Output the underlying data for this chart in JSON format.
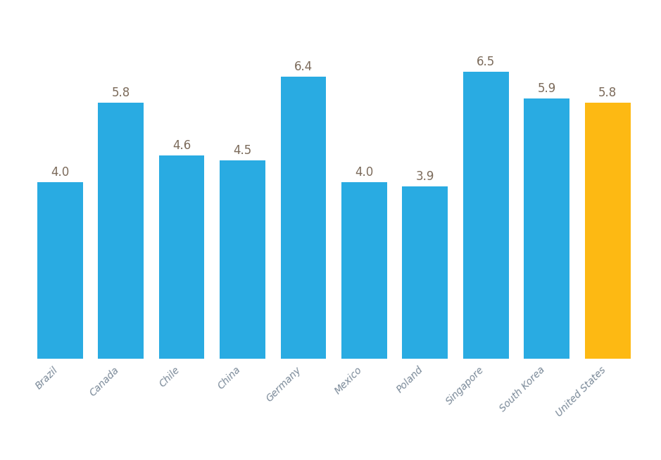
{
  "categories": [
    "Brazil",
    "Canada",
    "Chile",
    "China",
    "Germany",
    "Mexico",
    "Poland",
    "Singapore",
    "South Korea",
    "United States"
  ],
  "values": [
    4.0,
    5.8,
    4.6,
    4.5,
    6.4,
    4.0,
    3.9,
    6.5,
    5.9,
    5.8
  ],
  "bar_colors": [
    "#29ABE2",
    "#29ABE2",
    "#29ABE2",
    "#29ABE2",
    "#29ABE2",
    "#29ABE2",
    "#29ABE2",
    "#29ABE2",
    "#29ABE2",
    "#FDB913"
  ],
  "label_color": "#7B6A5A",
  "background_color": "#FFFFFF",
  "ylim": [
    0,
    7.4
  ],
  "label_fontsize": 12,
  "tick_fontsize": 10,
  "tick_color": "#7B8A99",
  "bar_width": 0.75
}
